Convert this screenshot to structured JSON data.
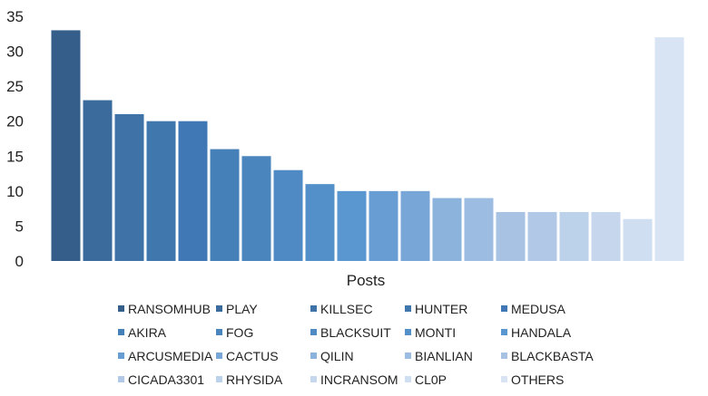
{
  "chart_data": {
    "type": "bar",
    "xlabel": "Posts",
    "ylabel": "",
    "ylim": [
      0,
      35
    ],
    "yticks": [
      0,
      5,
      10,
      15,
      20,
      25,
      30,
      35
    ],
    "grid": false,
    "legend_position": "bottom",
    "series": [
      {
        "name": "RANSOMHUB",
        "value": 33,
        "color": "#355f8a"
      },
      {
        "name": "PLAY",
        "value": 23,
        "color": "#3b6a9c"
      },
      {
        "name": "KILLSEC",
        "value": 21,
        "color": "#3f72a6"
      },
      {
        "name": "HUNTER",
        "value": 20,
        "color": "#4077ad"
      },
      {
        "name": "MEDUSA",
        "value": 20,
        "color": "#3f78b4"
      },
      {
        "name": "AKIRA",
        "value": 16,
        "color": "#4680b9"
      },
      {
        "name": "FOG",
        "value": 15,
        "color": "#4a85be"
      },
      {
        "name": "BLACKSUIT",
        "value": 13,
        "color": "#4f8ac4"
      },
      {
        "name": "MONTI",
        "value": 11,
        "color": "#5390ca"
      },
      {
        "name": "HANDALA",
        "value": 10,
        "color": "#5a96cf"
      },
      {
        "name": "ARCUSMEDIA",
        "value": 10,
        "color": "#679dd2"
      },
      {
        "name": "CACTUS",
        "value": 10,
        "color": "#78a7d7"
      },
      {
        "name": "QILIN",
        "value": 9,
        "color": "#8bb3dc"
      },
      {
        "name": "BIANLIAN",
        "value": 9,
        "color": "#9cbde1"
      },
      {
        "name": "BLACKBASTA",
        "value": 7,
        "color": "#a7c2e3"
      },
      {
        "name": "CICADA3301",
        "value": 7,
        "color": "#b1c9e7"
      },
      {
        "name": "RHYSIDA",
        "value": 7,
        "color": "#bcd1ea"
      },
      {
        "name": "INCRANSOM",
        "value": 7,
        "color": "#c6d7ed"
      },
      {
        "name": "CL0P",
        "value": 6,
        "color": "#cfdef1"
      },
      {
        "name": "OTHERS",
        "value": 32,
        "color": "#d8e4f4"
      }
    ]
  }
}
